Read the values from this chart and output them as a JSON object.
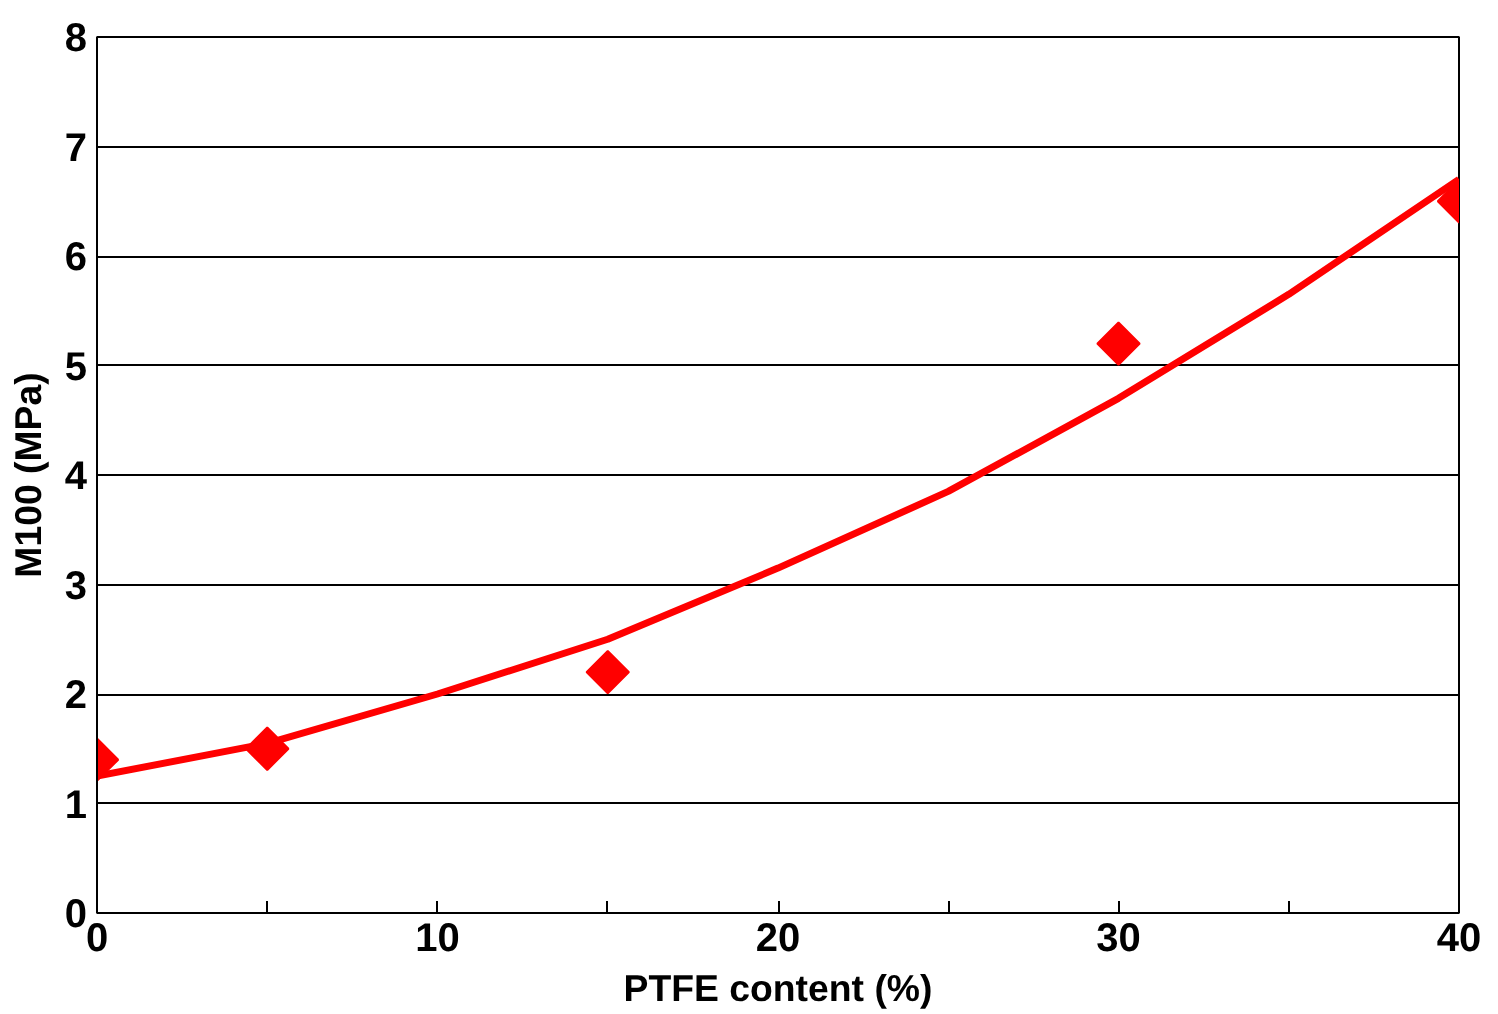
{
  "chart_data": {
    "type": "scatter",
    "xlabel": "PTFE content (%)",
    "ylabel": "M100 (MPa)",
    "xlim": [
      0,
      40
    ],
    "ylim": [
      0,
      8
    ],
    "xticks": [
      0,
      {
        "value": 5,
        "label": null
      },
      10,
      {
        "value": 15,
        "label": null
      },
      20,
      {
        "value": 25,
        "label": null
      },
      30,
      {
        "value": 35,
        "label": null
      },
      40
    ],
    "yticks": [
      0,
      1,
      2,
      3,
      4,
      5,
      6,
      7,
      8
    ],
    "grid": "y",
    "series": [
      {
        "color": "#ff0000",
        "marker": "diamond",
        "x": [
          0,
          5,
          15,
          30,
          40
        ],
        "values": [
          1.4,
          1.5,
          2.2,
          5.2,
          6.5
        ]
      },
      {
        "type": "line",
        "color": "#ff0000",
        "line_style": "solid",
        "marker": "none",
        "x": [
          0,
          5,
          10,
          15,
          20,
          25,
          30,
          35,
          40
        ],
        "values": [
          1.25,
          1.55,
          2.0,
          2.5,
          3.15,
          3.85,
          4.7,
          5.65,
          6.7
        ]
      }
    ]
  }
}
